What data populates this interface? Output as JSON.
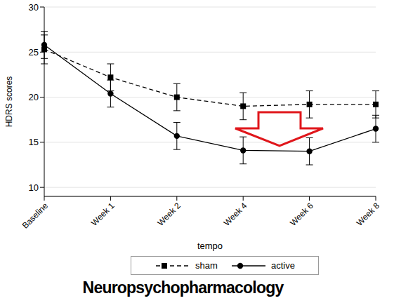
{
  "chart_data": {
    "type": "line",
    "x_label": "tempo",
    "y_label": "HDRS scores",
    "source": "Neuropsychopharmacology",
    "categories": [
      "Baseline",
      "Week 1",
      "Week 2",
      "Week 4",
      "Week 6",
      "Week 8"
    ],
    "ylim": [
      9,
      30
    ],
    "yticks": [
      10,
      15,
      20,
      25,
      30
    ],
    "grid": true,
    "legend": "bottom",
    "series": [
      {
        "name": "sham",
        "color": "#000000",
        "marker": "square",
        "line_style": "dashed",
        "values": [
          25.3,
          22.2,
          20.0,
          19.0,
          19.2,
          19.2
        ],
        "errors": [
          1.6,
          1.5,
          1.5,
          1.5,
          1.5,
          1.5
        ]
      },
      {
        "name": "active",
        "color": "#000000",
        "marker": "circle",
        "line_style": "solid",
        "values": [
          25.8,
          20.4,
          15.7,
          14.1,
          14.0,
          16.5
        ],
        "errors": [
          1.5,
          1.5,
          1.5,
          1.5,
          1.5,
          1.5
        ]
      }
    ]
  }
}
